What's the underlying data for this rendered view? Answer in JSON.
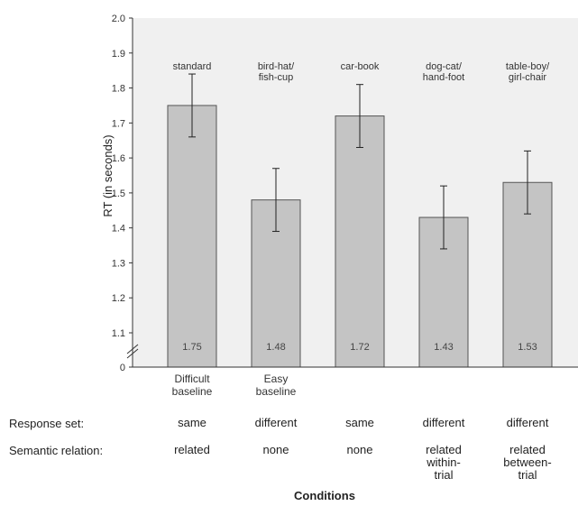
{
  "chart_data": {
    "type": "bar",
    "ylabel": "RT (in seconds)",
    "xlabel": "Conditions",
    "ylim": [
      1.0,
      2.0
    ],
    "yticks": [
      "0",
      "1.1",
      "1.2",
      "1.3",
      "1.4",
      "1.5",
      "1.6",
      "1.7",
      "1.8",
      "1.9",
      "2.0"
    ],
    "axis_break": true,
    "categories": [
      [
        "standard"
      ],
      [
        "bird-hat/",
        "fish-cup"
      ],
      [
        "car-book"
      ],
      [
        "dog-cat/",
        "hand-foot"
      ],
      [
        "table-boy/",
        "girl-chair"
      ]
    ],
    "values": [
      1.75,
      1.48,
      1.72,
      1.43,
      1.53
    ],
    "error": [
      0.09,
      0.09,
      0.09,
      0.09,
      0.09
    ],
    "value_labels": [
      "1.75",
      "1.48",
      "1.72",
      "1.43",
      "1.53"
    ],
    "baseline_labels": [
      [
        "Difficult",
        "baseline"
      ],
      [
        "Easy",
        "baseline"
      ],
      [],
      [],
      []
    ],
    "bar_color": "#c4c4c4",
    "plot_background": "#f0f0f0"
  },
  "table": {
    "response_set_label": "Response set:",
    "response_set": [
      "same",
      "different",
      "same",
      "different",
      "different"
    ],
    "semantic_relation_label": "Semantic relation:",
    "semantic_relation": [
      "related",
      "none",
      "none",
      "related\nwithin-\ntrial",
      "related\nbetween-\ntrial"
    ]
  }
}
